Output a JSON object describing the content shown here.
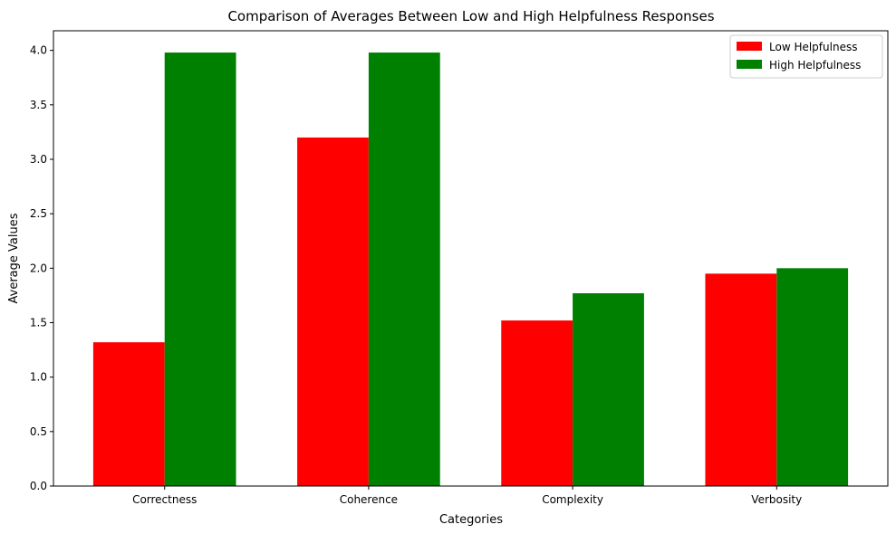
{
  "chart_data": {
    "type": "bar",
    "title": "Comparison of Averages Between Low and High Helpfulness Responses",
    "xlabel": "Categories",
    "ylabel": "Average Values",
    "categories": [
      "Correctness",
      "Coherence",
      "Complexity",
      "Verbosity"
    ],
    "series": [
      {
        "name": "Low Helpfulness",
        "color": "#ff0000",
        "values": [
          1.32,
          3.2,
          1.52,
          1.95
        ]
      },
      {
        "name": "High Helpfulness",
        "color": "#008000",
        "values": [
          3.98,
          3.98,
          1.77,
          2.0
        ]
      }
    ],
    "ylim": [
      0,
      4.18
    ],
    "yticks": [
      0.0,
      0.5,
      1.0,
      1.5,
      2.0,
      2.5,
      3.0,
      3.5,
      4.0
    ],
    "ytick_labels": [
      "0.0",
      "0.5",
      "1.0",
      "1.5",
      "2.0",
      "2.5",
      "3.0",
      "3.5",
      "4.0"
    ],
    "grid": false,
    "legend_position": "top-right"
  }
}
